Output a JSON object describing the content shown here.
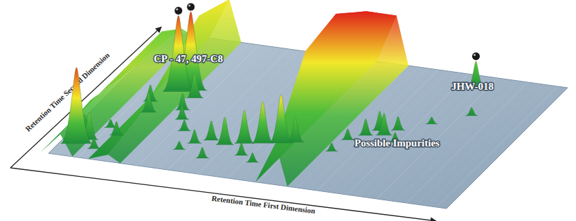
{
  "chart_data": {
    "type": "surface3d",
    "xlabel": "Retention Time First Dimension",
    "ylabel": "Retention Time Second Dimension",
    "xlim": [
      0,
      100
    ],
    "ylim": [
      0,
      100
    ],
    "zlim": [
      0,
      100
    ],
    "tick_labels": false,
    "series": [
      {
        "x": [
          4,
          6,
          9,
          11,
          3,
          8,
          30,
          33,
          37,
          41,
          45,
          49,
          52,
          28,
          35,
          43,
          47,
          25,
          22,
          20,
          63,
          66,
          68,
          70,
          72,
          74,
          62,
          78,
          85,
          13,
          11,
          20
        ],
        "y": [
          10,
          14,
          8,
          20,
          20,
          25,
          22,
          26,
          24,
          27,
          29,
          31,
          33,
          16,
          12,
          18,
          14,
          30,
          38,
          45,
          40,
          45,
          50,
          47,
          52,
          43,
          30,
          60,
          70,
          40,
          48,
          55
        ],
        "values": [
          55,
          20,
          8,
          10,
          12,
          6,
          10,
          14,
          20,
          24,
          30,
          35,
          18,
          6,
          8,
          9,
          7,
          8,
          10,
          12,
          8,
          12,
          14,
          16,
          10,
          7,
          6,
          5,
          6,
          15,
          12,
          18
        ]
      },
      {
        "marker": "circle",
        "x": [
          15,
          17.5,
          80
        ],
        "y": [
          58,
          60,
          90
        ],
        "values": [
          55,
          57,
          20
        ]
      }
    ],
    "ridges": [
      {
        "x": 3,
        "y": [
          0,
          25,
          50,
          75,
          100
        ],
        "values": [
          15,
          18,
          12,
          8,
          4
        ]
      },
      {
        "x": 15,
        "y": [
          0,
          25,
          50,
          75,
          100
        ],
        "values": [
          5,
          10,
          25,
          40,
          30
        ]
      },
      {
        "x": 57,
        "y": [
          0,
          25,
          50,
          75,
          100
        ],
        "values": [
          30,
          75,
          80,
          60,
          35
        ]
      }
    ],
    "annotations": [
      {
        "text": "CP - 47, 497-C8"
      },
      {
        "text": "JHW-018"
      },
      {
        "text": "Possible Impurities"
      }
    ]
  }
}
